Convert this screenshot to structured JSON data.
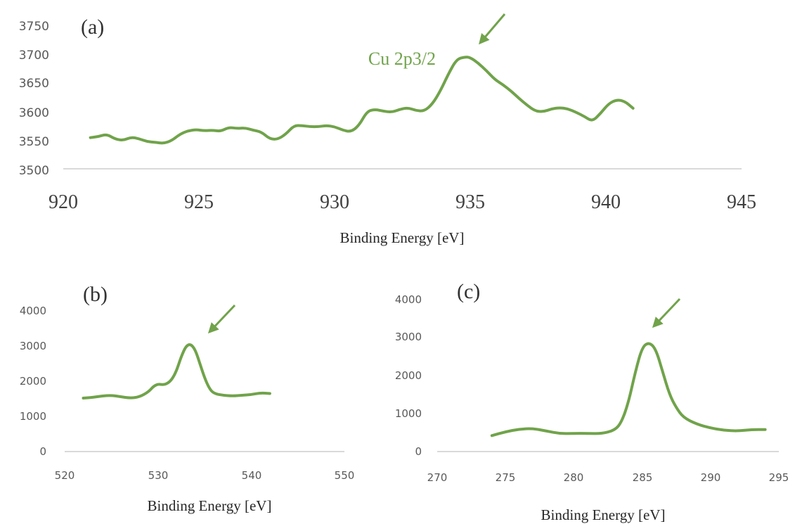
{
  "colors": {
    "series": "#70a34a",
    "axis": "#d9d9d9",
    "tick": "#595959"
  },
  "chart_data": [
    {
      "type": "line",
      "panel_label": "(a)",
      "xlabel": "Binding Energy [eV]",
      "ylabel": "",
      "xlim": [
        920,
        945
      ],
      "ylim": [
        3500,
        3750
      ],
      "xticks": [
        "920",
        "925",
        "930",
        "935",
        "940",
        "945"
      ],
      "yticks": [
        "3500",
        "3550",
        "3600",
        "3650",
        "3700",
        "3750"
      ],
      "annotation": {
        "text": "Cu 2p3/2",
        "x": 935.0,
        "y": 3693
      },
      "arrow_target": {
        "x": 935.2,
        "y": 3713
      },
      "series": [
        {
          "x": [
            921,
            921.3,
            921.6,
            921.9,
            922.2,
            922.5,
            922.8,
            923.1,
            923.4,
            923.7,
            924,
            924.3,
            924.6,
            924.9,
            925.2,
            925.5,
            925.8,
            926.1,
            926.4,
            926.7,
            927,
            927.3,
            927.6,
            927.9,
            928.2,
            928.5,
            928.8,
            929.1,
            929.4,
            929.7,
            930,
            930.3,
            930.6,
            930.9,
            931.2,
            931.5,
            931.8,
            932.1,
            932.4,
            932.7,
            933,
            933.3,
            933.6,
            933.9,
            934.2,
            934.5,
            934.8,
            935,
            935.3,
            935.6,
            935.9,
            936.2,
            936.5,
            936.8,
            937.1,
            937.4,
            937.7,
            938,
            938.3,
            938.6,
            938.9,
            939.2,
            939.5,
            939.8,
            940.1,
            940.4,
            940.7,
            941
          ],
          "y": [
            3554,
            3556,
            3560,
            3552,
            3549,
            3555,
            3552,
            3547,
            3546,
            3544,
            3549,
            3560,
            3566,
            3568,
            3566,
            3567,
            3565,
            3572,
            3570,
            3571,
            3567,
            3564,
            3552,
            3551,
            3560,
            3575,
            3575,
            3573,
            3573,
            3575,
            3573,
            3567,
            3564,
            3575,
            3600,
            3603,
            3600,
            3598,
            3603,
            3606,
            3601,
            3600,
            3612,
            3635,
            3665,
            3690,
            3694,
            3693,
            3683,
            3670,
            3655,
            3646,
            3635,
            3622,
            3610,
            3600,
            3599,
            3604,
            3606,
            3604,
            3598,
            3591,
            3582,
            3596,
            3613,
            3620,
            3617,
            3605
          ]
        }
      ]
    },
    {
      "type": "line",
      "panel_label": "(b)",
      "xlabel": "Binding Energy [eV]",
      "ylabel": "",
      "xlim": [
        520,
        550
      ],
      "ylim": [
        0,
        4000
      ],
      "xticks": [
        "520",
        "530",
        "540",
        "550"
      ],
      "yticks": [
        "0",
        "1000",
        "2000",
        "3000",
        "4000"
      ],
      "arrow_target": {
        "x": 534.3,
        "y": 3350
      },
      "series": [
        {
          "x": [
            522,
            523,
            524,
            525,
            526,
            527,
            528,
            529,
            529.5,
            530,
            530.5,
            531,
            531.5,
            532,
            532.5,
            533,
            533.5,
            534,
            534.5,
            535,
            535.5,
            536,
            537,
            538,
            539,
            540,
            541,
            542
          ],
          "y": [
            1520,
            1540,
            1580,
            1600,
            1560,
            1520,
            1550,
            1700,
            1850,
            1920,
            1900,
            1930,
            2050,
            2300,
            2700,
            3000,
            3060,
            2900,
            2500,
            2100,
            1800,
            1650,
            1600,
            1580,
            1600,
            1620,
            1670,
            1650
          ]
        }
      ]
    },
    {
      "type": "line",
      "panel_label": "(c)",
      "xlabel": "Binding Energy [eV]",
      "ylabel": "",
      "xlim": [
        270,
        295
      ],
      "ylim": [
        0,
        4000
      ],
      "xticks": [
        "270",
        "275",
        "280",
        "285",
        "290",
        "295"
      ],
      "yticks": [
        "0",
        "1000",
        "2000",
        "3000",
        "4000"
      ],
      "arrow_target": {
        "x": 285.7,
        "y": 3150
      },
      "series": [
        {
          "x": [
            274,
            275,
            276,
            277,
            278,
            279,
            280,
            281,
            282,
            283,
            283.5,
            284,
            284.5,
            285,
            285.5,
            286,
            286.5,
            287,
            287.5,
            288,
            289,
            290,
            291,
            292,
            293,
            294
          ],
          "y": [
            420,
            520,
            590,
            610,
            540,
            470,
            480,
            480,
            470,
            560,
            780,
            1300,
            2100,
            2750,
            2880,
            2700,
            2100,
            1500,
            1150,
            900,
            720,
            620,
            560,
            540,
            580,
            580
          ]
        }
      ]
    }
  ]
}
